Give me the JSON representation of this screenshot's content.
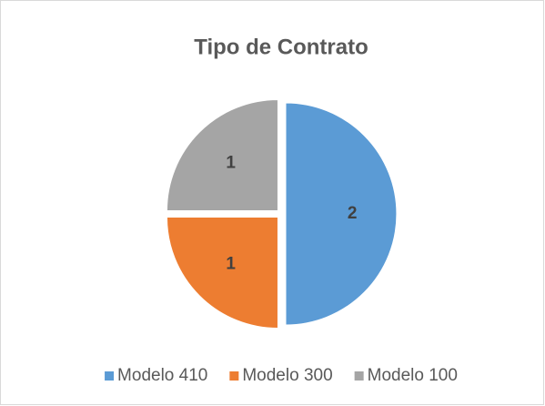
{
  "chart_data": {
    "type": "pie",
    "title": "Tipo de Contrato",
    "categories": [
      "Modelo 410",
      "Modelo 300",
      "Modelo 100"
    ],
    "values": [
      2,
      1,
      1
    ],
    "colors": [
      "#5b9bd5",
      "#ed7d31",
      "#a5a5a5"
    ],
    "legend": "bottom"
  }
}
